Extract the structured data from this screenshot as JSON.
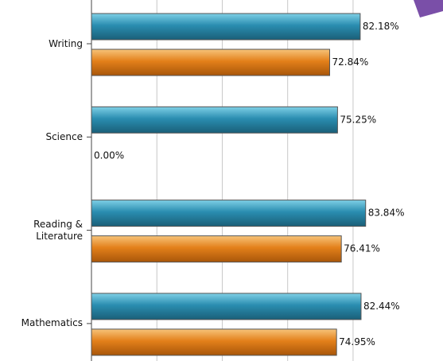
{
  "chart_data": {
    "type": "bar",
    "orientation": "horizontal",
    "categories": [
      "Writing",
      "Science",
      "Reading & Literature",
      "Mathematics"
    ],
    "series": [
      {
        "color": "#2a8db0",
        "values": [
          82.18,
          75.25,
          83.84,
          82.44
        ],
        "value_labels": [
          "82.18%",
          "75.25%",
          "83.84%",
          "82.44%"
        ]
      },
      {
        "color": "#e3801a",
        "values": [
          72.84,
          0.0,
          76.41,
          74.95
        ],
        "value_labels": [
          "72.84%",
          "0.00%",
          "76.41%",
          "74.95%"
        ]
      }
    ],
    "xlim": [
      0,
      107.5
    ],
    "xticks": [
      0,
      20,
      40,
      60,
      80
    ],
    "grid": true
  }
}
